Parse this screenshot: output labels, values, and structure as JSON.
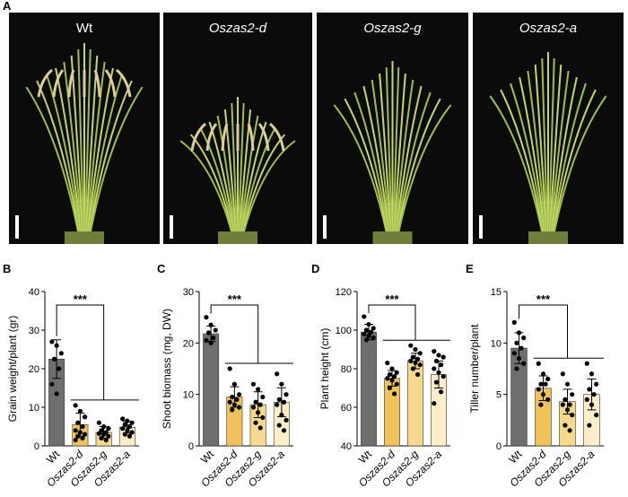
{
  "photos": {
    "panel": "A",
    "labels": [
      "Wt",
      "Oszas2-d",
      "Oszas2-g",
      "Oszas2-a"
    ]
  },
  "chart_data": [
    {
      "type": "bar",
      "panel": "B",
      "ylabel": "Grain weight/plant (gr)",
      "categories": [
        "Wt",
        "Oszas2-d",
        "Oszas2-g",
        "Oszas2-a"
      ],
      "values": [
        22.5,
        5.5,
        3.5,
        4.8
      ],
      "errors": [
        5,
        3,
        1.5,
        1.5
      ],
      "points": [
        [
          27,
          26,
          24,
          22.5,
          20,
          16,
          13.5
        ],
        [
          10.5,
          9,
          7.5,
          6,
          5,
          4,
          3.5,
          3,
          2.5,
          2,
          1.5
        ],
        [
          6,
          5,
          4.5,
          4,
          3.5,
          3.2,
          3,
          2.5,
          2,
          1.5
        ],
        [
          7,
          6.5,
          6,
          5.5,
          5,
          4.5,
          4,
          3.5,
          3,
          2.5
        ]
      ],
      "colors": [
        "#6e6e6e",
        "#f2c25a",
        "#f6d98a",
        "#fbeec8"
      ],
      "ylim": [
        0,
        40
      ],
      "yticks": [
        0,
        10,
        20,
        30,
        40
      ],
      "annotation": "***"
    },
    {
      "type": "bar",
      "panel": "C",
      "ylabel": "Shoot biomass (mg, DW)",
      "categories": [
        "Wt",
        "Oszas2-d",
        "Oszas2-g",
        "Oszas2-a"
      ],
      "values": [
        21.8,
        9.5,
        8,
        8.5
      ],
      "errors": [
        1.5,
        2,
        2.5,
        2.8
      ],
      "points": [
        [
          25,
          23.5,
          22.5,
          22,
          21,
          20.5,
          20
        ],
        [
          15,
          12,
          10,
          9.5,
          9,
          8.5,
          8,
          7.5,
          7
        ],
        [
          12,
          11,
          9.5,
          8.5,
          8,
          7.5,
          6.5,
          5.5,
          4.5,
          3.5
        ],
        [
          14,
          12,
          10,
          9,
          8.5,
          8,
          6,
          5,
          4,
          3
        ]
      ],
      "colors": [
        "#6e6e6e",
        "#f2c25a",
        "#f6d98a",
        "#fbeec8"
      ],
      "ylim": [
        0,
        30
      ],
      "yticks": [
        0,
        10,
        20,
        30
      ],
      "annotation": "***"
    },
    {
      "type": "bar",
      "panel": "D",
      "ylabel": "Plant height (cm)",
      "categories": [
        "Wt",
        "Oszas2-d",
        "Oszas2-g",
        "Oszas2-a"
      ],
      "values": [
        99,
        75,
        84,
        77
      ],
      "errors": [
        4,
        4,
        4,
        7
      ],
      "points": [
        [
          107,
          103,
          101,
          100,
          99,
          98,
          97,
          96,
          95
        ],
        [
          83,
          80,
          78,
          77,
          76,
          75,
          74,
          72,
          70,
          67
        ],
        [
          92,
          90,
          88,
          86,
          85,
          84,
          83,
          82,
          80,
          77
        ],
        [
          89,
          87,
          86,
          84,
          82,
          80,
          78,
          76,
          73,
          68,
          62
        ]
      ],
      "colors": [
        "#6e6e6e",
        "#f2c25a",
        "#f6d98a",
        "#fbeec8"
      ],
      "ylim": [
        40,
        120
      ],
      "yticks": [
        40,
        60,
        80,
        100,
        120
      ],
      "annotation": "***"
    },
    {
      "type": "bar",
      "panel": "E",
      "ylabel": "Tiller number/plant",
      "categories": [
        "Wt",
        "Oszas2-d",
        "Oszas2-g",
        "Oszas2-a"
      ],
      "values": [
        9.5,
        5.6,
        4.3,
        5
      ],
      "errors": [
        1.5,
        1.2,
        1.2,
        1.5
      ],
      "points": [
        [
          12,
          11,
          10.5,
          10,
          9.5,
          9,
          8.5,
          8,
          7.5
        ],
        [
          8,
          7,
          6.5,
          6,
          6,
          5.5,
          5,
          4.5,
          4
        ],
        [
          7,
          6,
          5,
          4.5,
          4,
          4,
          3.5,
          3,
          2,
          1.5
        ],
        [
          8,
          7,
          6,
          5.5,
          5,
          4.5,
          4,
          3,
          2
        ]
      ],
      "colors": [
        "#6e6e6e",
        "#f2c25a",
        "#f6d98a",
        "#fbeec8"
      ],
      "ylim": [
        0,
        15
      ],
      "yticks": [
        0,
        5,
        10,
        15
      ],
      "annotation": "***"
    }
  ]
}
